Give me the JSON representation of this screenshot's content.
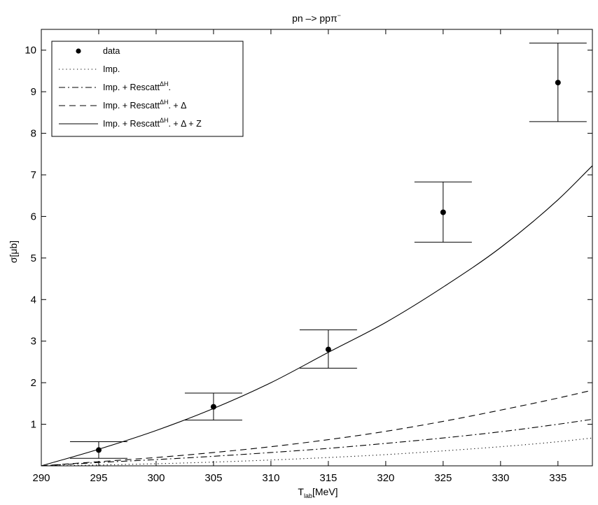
{
  "chart_data": {
    "type": "line",
    "title": "pn –> ppπ⁻",
    "title_parts": {
      "base": "pn –> pp",
      "pi": "π",
      "sup": "−"
    },
    "xlabel": {
      "base": "T",
      "sub": "lab",
      "unit": "[MeV]"
    },
    "ylabel": "σ[μb]",
    "xlim": [
      290,
      338
    ],
    "ylim": [
      0,
      10.5
    ],
    "xticks": [
      290,
      295,
      300,
      305,
      310,
      315,
      320,
      325,
      330,
      335
    ],
    "yticks": [
      1,
      2,
      3,
      4,
      5,
      6,
      7,
      8,
      9,
      10
    ],
    "grid": false,
    "legend_position": "top-left",
    "data_points": {
      "name": "data",
      "x": [
        295,
        305,
        315,
        325,
        335
      ],
      "y": [
        0.38,
        1.42,
        2.8,
        6.1,
        9.22
      ],
      "err_low": [
        0.18,
        1.1,
        2.35,
        5.38,
        8.28
      ],
      "err_high": [
        0.58,
        1.75,
        3.27,
        6.83,
        10.17
      ]
    },
    "series": [
      {
        "name": "Imp.",
        "style": "dotted",
        "x": [
          290,
          295,
          300,
          305,
          310,
          315,
          320,
          325,
          330,
          335,
          338
        ],
        "y": [
          0.0,
          0.02,
          0.05,
          0.09,
          0.14,
          0.2,
          0.27,
          0.36,
          0.46,
          0.58,
          0.67
        ]
      },
      {
        "name": "Imp. + Rescatt",
        "name_sup": "ΔH",
        "name_tail": ".",
        "style": "dashdot",
        "x": [
          290,
          295,
          300,
          305,
          310,
          315,
          320,
          325,
          330,
          335,
          338
        ],
        "y": [
          0.0,
          0.08,
          0.15,
          0.23,
          0.32,
          0.42,
          0.54,
          0.67,
          0.82,
          1.0,
          1.12
        ]
      },
      {
        "name": "Imp. + Rescatt",
        "name_sup": "ΔH",
        "name_tail": ". + Δ",
        "style": "dashed",
        "x": [
          290,
          295,
          300,
          305,
          310,
          315,
          320,
          325,
          330,
          335,
          338
        ],
        "y": [
          0.0,
          0.1,
          0.2,
          0.32,
          0.46,
          0.63,
          0.83,
          1.07,
          1.34,
          1.63,
          1.82
        ]
      },
      {
        "name": "Imp. + Rescatt",
        "name_sup": "ΔH",
        "name_tail": ". + Δ + Z",
        "style": "solid",
        "x": [
          290,
          295,
          300,
          305,
          310,
          315,
          320,
          325,
          330,
          335,
          338
        ],
        "y": [
          0.0,
          0.4,
          0.85,
          1.38,
          2.0,
          2.73,
          3.45,
          4.3,
          5.25,
          6.4,
          7.22
        ]
      }
    ]
  }
}
